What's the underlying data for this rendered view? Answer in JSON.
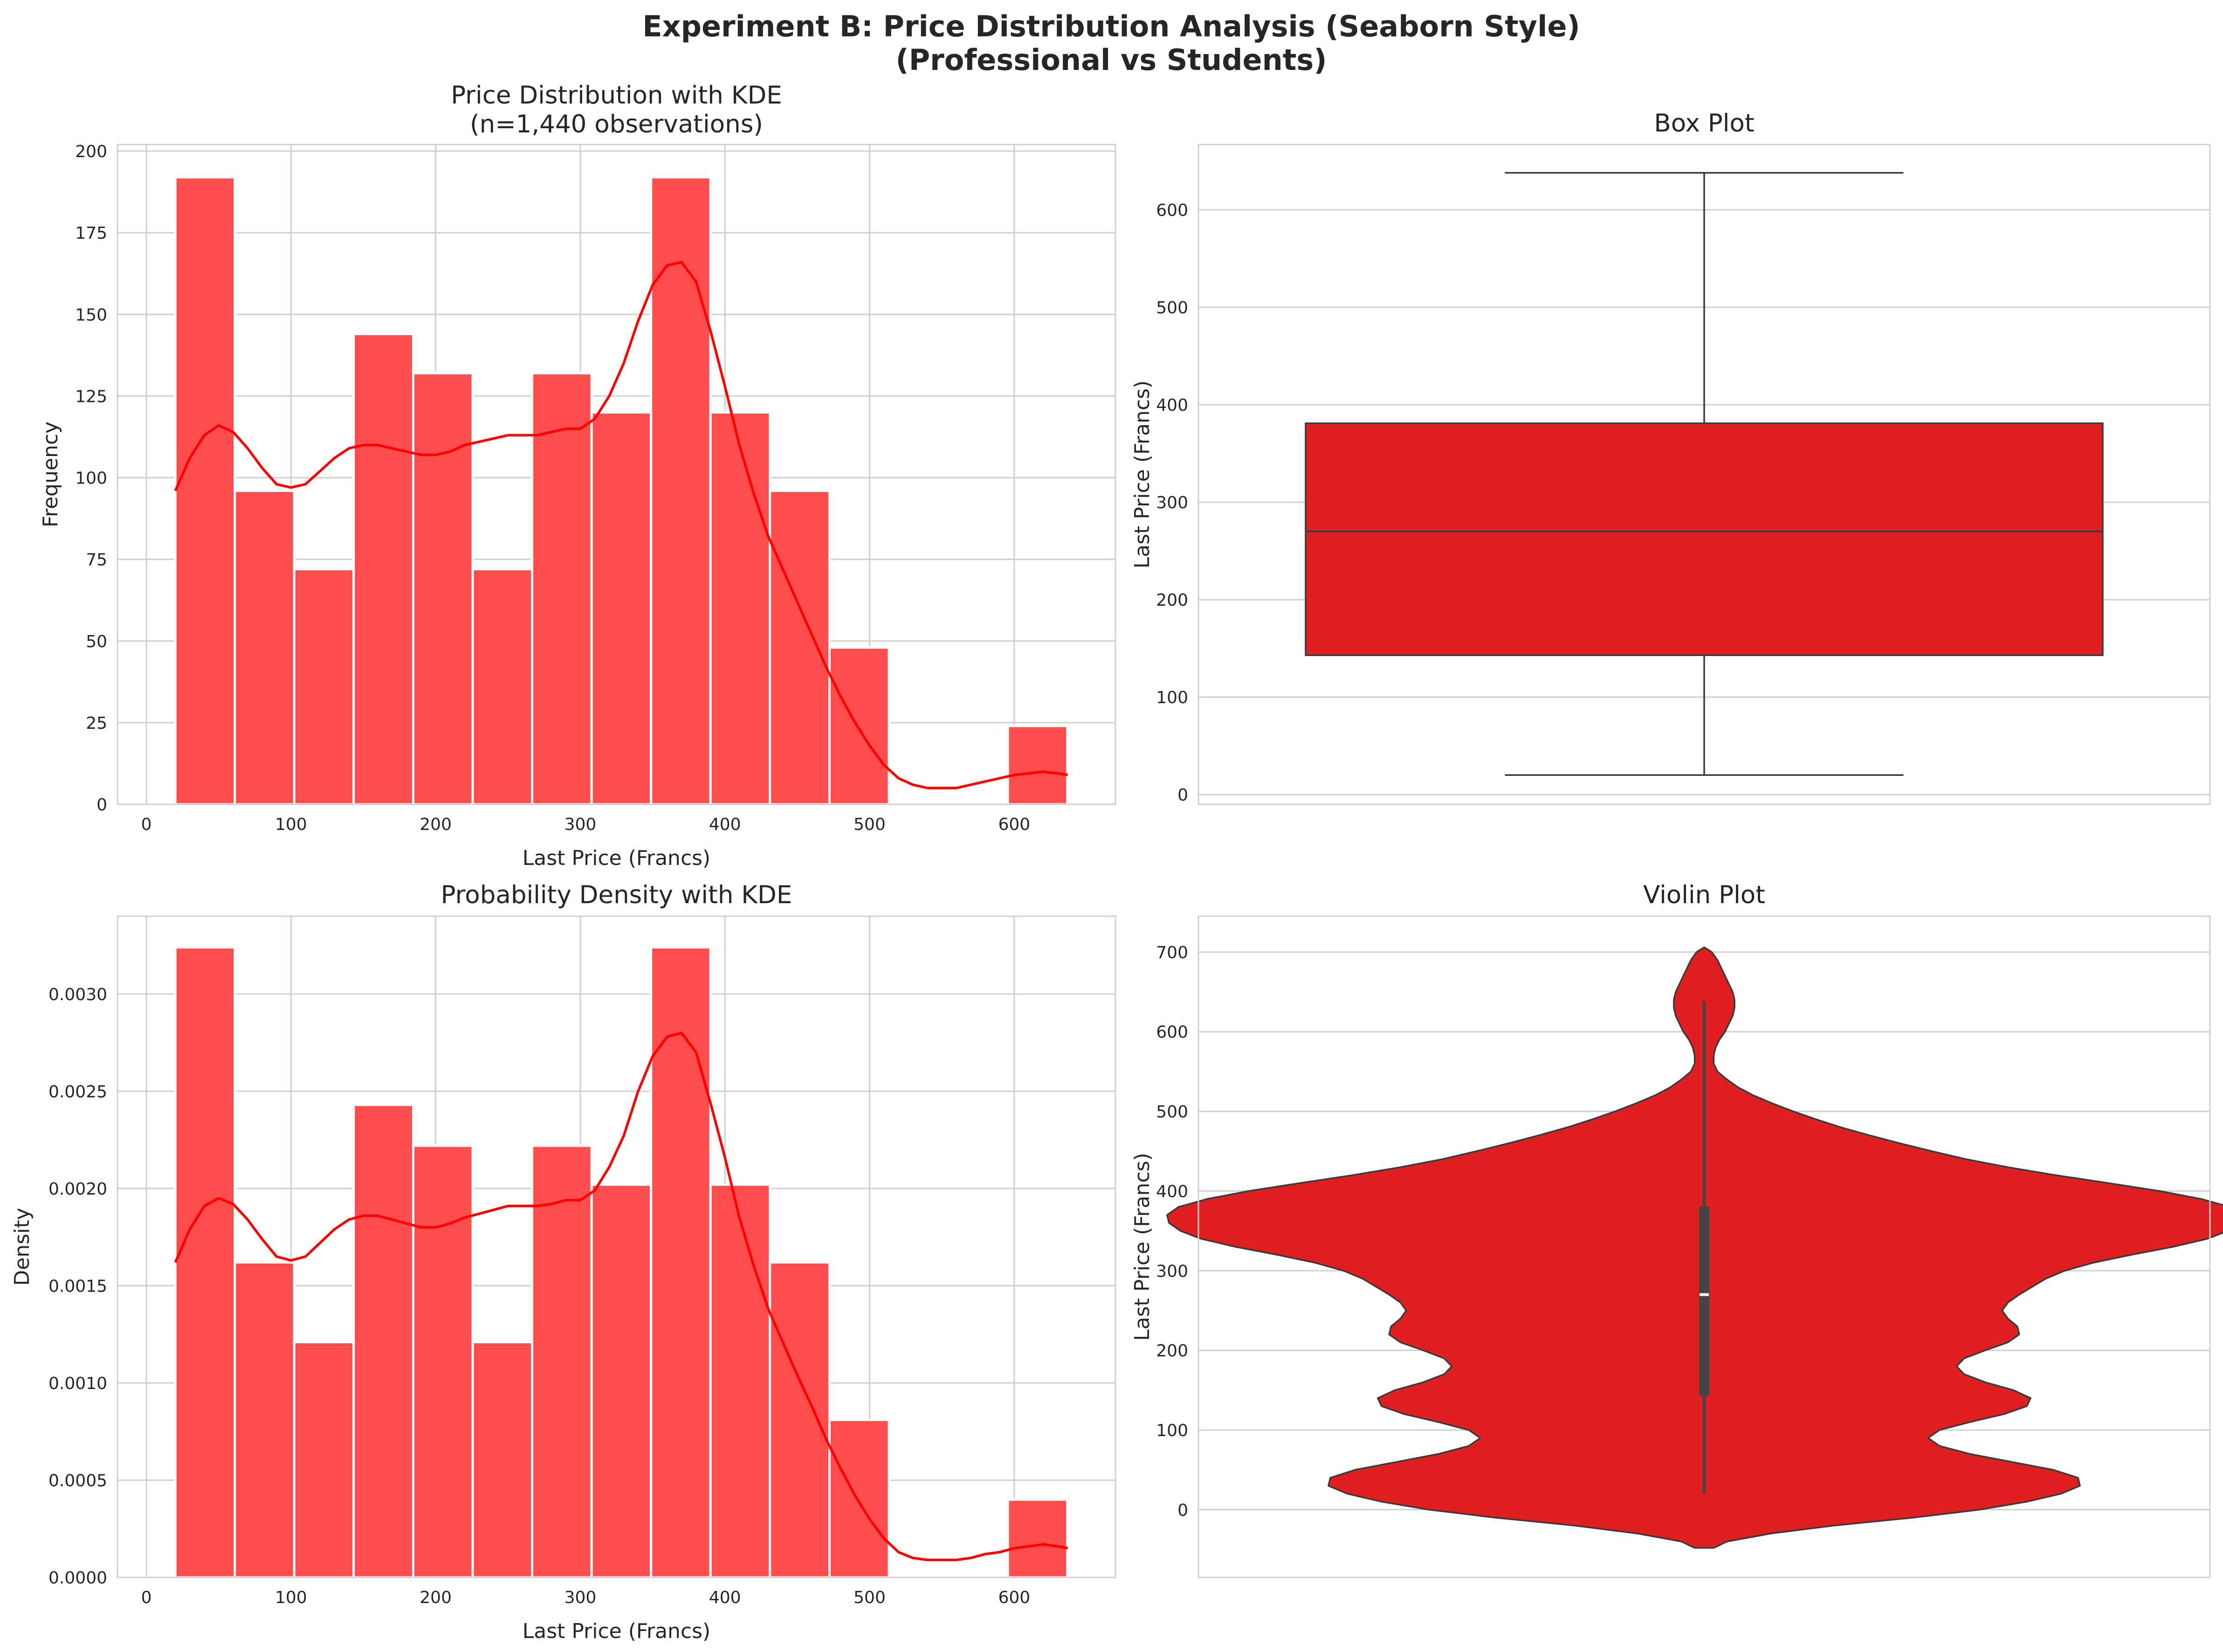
{
  "figure": {
    "title_line1": "Experiment B: Price Distribution Analysis (Seaborn Style)",
    "title_line2": "(Professional vs Students)"
  },
  "colors": {
    "hist_bar": "#ff4d4d",
    "kde_line": "#ff0000",
    "box_fill": "#e02020",
    "violin_fill": "#e02020",
    "edge": "#3a3a3a",
    "grid": "#cfcfcf",
    "background": "#ffffff"
  },
  "chart_data": [
    {
      "id": "hist_freq",
      "type": "bar",
      "title_line1": "Price Distribution with KDE",
      "title_line2": "(n=1,440 observations)",
      "xlabel": "Last Price (Francs)",
      "ylabel": "Frequency",
      "xlim": [
        -20,
        670
      ],
      "ylim": [
        0,
        202
      ],
      "xticks": [
        0,
        100,
        200,
        300,
        400,
        500,
        600
      ],
      "yticks": [
        0,
        25,
        50,
        75,
        100,
        125,
        150,
        175,
        200
      ],
      "bin_edges": [
        20,
        61.1,
        102.2,
        143.3,
        184.5,
        225.6,
        266.7,
        307.8,
        348.9,
        390,
        431.1,
        472.3,
        513.4,
        554.5,
        595.6,
        636.7
      ],
      "values": [
        192,
        96,
        72,
        144,
        132,
        72,
        132,
        120,
        192,
        120,
        96,
        48,
        0,
        0,
        24
      ],
      "kde_x": [
        20,
        30,
        40,
        50,
        60,
        70,
        80,
        90,
        100,
        110,
        120,
        130,
        140,
        150,
        160,
        170,
        180,
        190,
        200,
        210,
        220,
        230,
        240,
        250,
        260,
        270,
        280,
        290,
        300,
        310,
        320,
        330,
        340,
        350,
        360,
        370,
        380,
        390,
        400,
        410,
        420,
        430,
        440,
        450,
        460,
        470,
        480,
        490,
        500,
        510,
        520,
        530,
        540,
        550,
        560,
        570,
        580,
        590,
        600,
        610,
        620,
        630,
        637
      ],
      "kde_y": [
        96,
        106,
        113,
        116,
        114,
        109,
        103,
        98,
        97,
        98,
        102,
        106,
        109,
        110,
        110,
        109,
        108,
        107,
        107,
        108,
        110,
        111,
        112,
        113,
        113,
        113,
        114,
        115,
        115,
        118,
        125,
        135,
        148,
        159,
        165,
        166,
        160,
        145,
        128,
        110,
        95,
        82,
        72,
        62,
        52,
        42,
        33,
        25,
        18,
        12,
        8,
        6,
        5,
        5,
        5,
        6,
        7,
        8,
        9,
        9.5,
        10,
        9.5,
        9
      ]
    },
    {
      "id": "boxplot",
      "type": "box",
      "title": "Box Plot",
      "xlabel": "",
      "ylabel": "Last Price (Francs)",
      "ylim": [
        -10,
        667
      ],
      "yticks": [
        0,
        100,
        200,
        300,
        400,
        500,
        600
      ],
      "whisker_low": 20,
      "q1": 143,
      "median": 270,
      "q3": 381,
      "whisker_high": 638
    },
    {
      "id": "hist_density",
      "type": "bar",
      "title": "Probability Density with KDE",
      "xlabel": "Last Price (Francs)",
      "ylabel": "Density",
      "xlim": [
        -20,
        670
      ],
      "ylim": [
        0,
        0.0034
      ],
      "xticks": [
        0,
        100,
        200,
        300,
        400,
        500,
        600
      ],
      "yticks": [
        0.0,
        0.0005,
        0.001,
        0.0015,
        0.002,
        0.0025,
        0.003
      ],
      "ytick_labels": [
        "0.0000",
        "0.0005",
        "0.0010",
        "0.0015",
        "0.0020",
        "0.0025",
        "0.0030"
      ],
      "bin_edges": [
        20,
        61.1,
        102.2,
        143.3,
        184.5,
        225.6,
        266.7,
        307.8,
        348.9,
        390,
        431.1,
        472.3,
        513.4,
        554.5,
        595.6,
        636.7
      ],
      "values": [
        0.00324,
        0.00162,
        0.00121,
        0.00243,
        0.00222,
        0.00121,
        0.00222,
        0.00202,
        0.00324,
        0.00202,
        0.00162,
        0.00081,
        0,
        0,
        0.0004
      ],
      "kde_x": [
        20,
        30,
        40,
        50,
        60,
        70,
        80,
        90,
        100,
        110,
        120,
        130,
        140,
        150,
        160,
        170,
        180,
        190,
        200,
        210,
        220,
        230,
        240,
        250,
        260,
        270,
        280,
        290,
        300,
        310,
        320,
        330,
        340,
        350,
        360,
        370,
        380,
        390,
        400,
        410,
        420,
        430,
        440,
        450,
        460,
        470,
        480,
        490,
        500,
        510,
        520,
        530,
        540,
        550,
        560,
        570,
        580,
        590,
        600,
        610,
        620,
        630,
        637
      ],
      "kde_y": [
        0.00162,
        0.00179,
        0.00191,
        0.00195,
        0.00192,
        0.00184,
        0.00174,
        0.00165,
        0.00163,
        0.00165,
        0.00172,
        0.00179,
        0.00184,
        0.00186,
        0.00186,
        0.00184,
        0.00182,
        0.0018,
        0.0018,
        0.00182,
        0.00185,
        0.00187,
        0.00189,
        0.00191,
        0.00191,
        0.00191,
        0.00192,
        0.00194,
        0.00194,
        0.00199,
        0.00211,
        0.00227,
        0.0025,
        0.00268,
        0.00278,
        0.0028,
        0.0027,
        0.00244,
        0.00216,
        0.00185,
        0.0016,
        0.00138,
        0.00121,
        0.00104,
        0.00088,
        0.00071,
        0.00056,
        0.00042,
        0.0003,
        0.0002,
        0.00013,
        0.0001,
        9e-05,
        9e-05,
        9e-05,
        0.0001,
        0.00012,
        0.00013,
        0.00015,
        0.00016,
        0.00017,
        0.00016,
        0.00015
      ]
    },
    {
      "id": "violin",
      "type": "violin",
      "title": "Violin Plot",
      "xlabel": "",
      "ylabel": "Last Price (Francs)",
      "ylim": [
        -85,
        745
      ],
      "yticks": [
        0,
        100,
        200,
        300,
        400,
        500,
        600,
        700
      ],
      "max_half_width": 280,
      "profile_y": [
        -48,
        -40,
        -30,
        -20,
        -10,
        0,
        10,
        20,
        30,
        40,
        50,
        60,
        70,
        80,
        90,
        100,
        110,
        120,
        130,
        140,
        150,
        160,
        170,
        180,
        190,
        200,
        210,
        220,
        230,
        240,
        250,
        260,
        270,
        280,
        290,
        300,
        310,
        320,
        330,
        340,
        350,
        360,
        370,
        380,
        390,
        400,
        410,
        420,
        430,
        440,
        450,
        460,
        470,
        480,
        490,
        500,
        510,
        520,
        530,
        540,
        550,
        560,
        570,
        580,
        590,
        600,
        610,
        620,
        630,
        640,
        650,
        660,
        670,
        680,
        690,
        700,
        706
      ],
      "profile_half_width": [
        5,
        12,
        35,
        68,
        110,
        145,
        170,
        188,
        198,
        197,
        184,
        162,
        140,
        124,
        118,
        124,
        140,
        158,
        170,
        172,
        163,
        148,
        137,
        133,
        137,
        148,
        160,
        166,
        165,
        160,
        157,
        160,
        166,
        173,
        180,
        190,
        205,
        225,
        247,
        265,
        276,
        282,
        283,
        277,
        262,
        240,
        213,
        185,
        160,
        138,
        120,
        103,
        87,
        72,
        59,
        47,
        36,
        26,
        18,
        12,
        7,
        5,
        5,
        6,
        8,
        11,
        13,
        15,
        16,
        16,
        15,
        13,
        11,
        9,
        7,
        4,
        0
      ],
      "inner_whisker_low": 20,
      "inner_q1": 143,
      "inner_median": 270,
      "inner_q3": 381,
      "inner_whisker_high": 638
    }
  ]
}
